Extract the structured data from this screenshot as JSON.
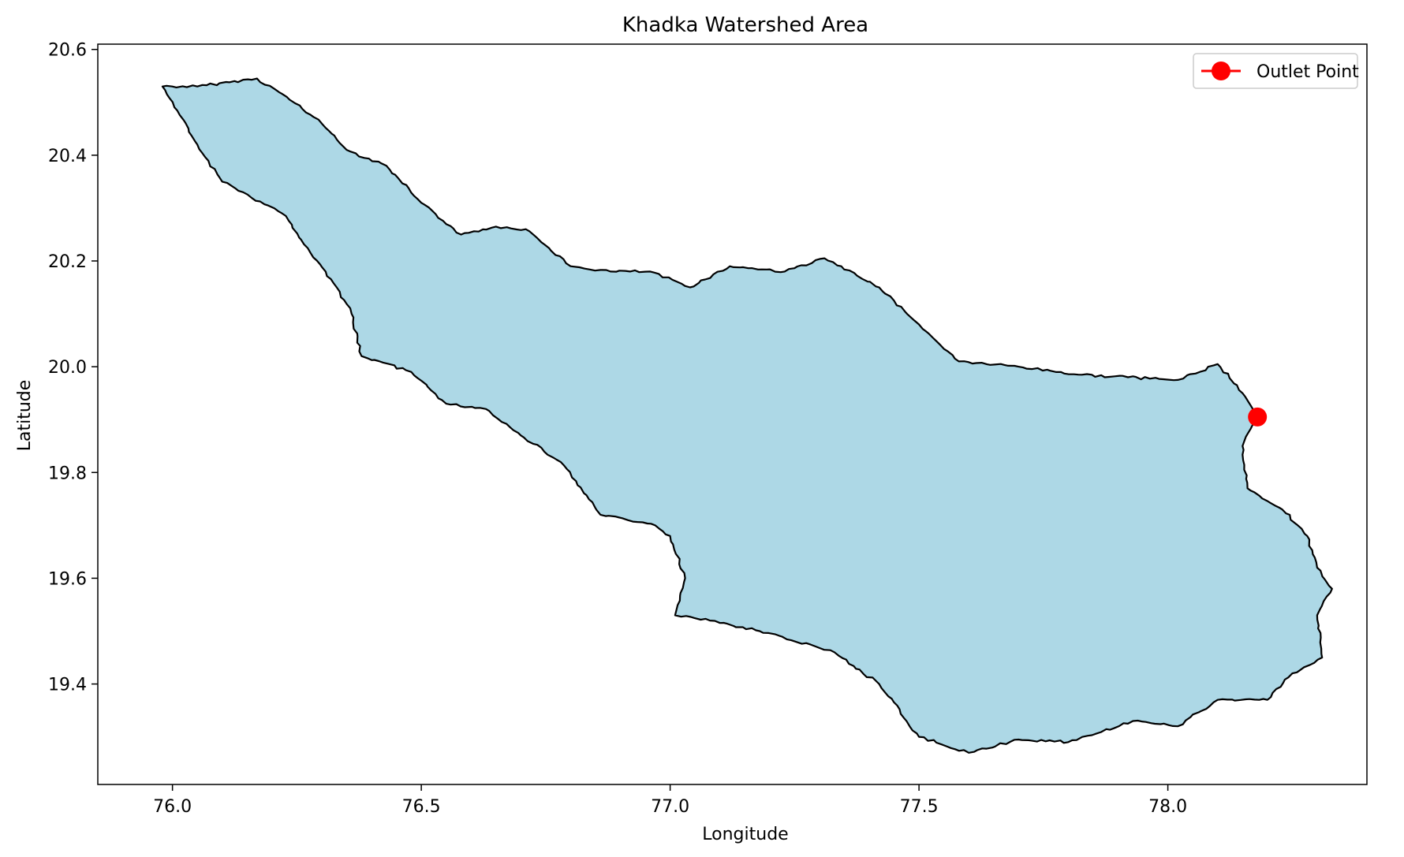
{
  "chart_data": {
    "type": "area",
    "title": "Khadka Watershed Area",
    "xlabel": "Longitude",
    "ylabel": "Latitude",
    "xlim": [
      75.85,
      78.4
    ],
    "ylim": [
      19.21,
      20.61
    ],
    "x_ticks": [
      "76.0",
      "76.5",
      "77.0",
      "77.5",
      "78.0"
    ],
    "y_ticks": [
      "19.4",
      "19.6",
      "19.8",
      "20.0",
      "20.2",
      "20.4",
      "20.6"
    ],
    "grid": false,
    "legend_position": "top-right",
    "legend": [
      {
        "label": "Outlet Point",
        "marker": "circle",
        "color": "#ff0000"
      }
    ],
    "outlet_point": {
      "x": 78.18,
      "y": 19.905
    },
    "watershed_fill_color": "#add8e6",
    "watershed_edge_color": "#000000",
    "watershed_boundary": [
      [
        75.98,
        20.53
      ],
      [
        76.05,
        20.53
      ],
      [
        76.17,
        20.545
      ],
      [
        76.23,
        20.51
      ],
      [
        76.3,
        20.46
      ],
      [
        76.35,
        20.41
      ],
      [
        76.43,
        20.38
      ],
      [
        76.5,
        20.31
      ],
      [
        76.58,
        20.25
      ],
      [
        76.65,
        20.265
      ],
      [
        76.71,
        20.26
      ],
      [
        76.8,
        20.19
      ],
      [
        76.88,
        20.18
      ],
      [
        76.96,
        20.18
      ],
      [
        77.04,
        20.15
      ],
      [
        77.12,
        20.19
      ],
      [
        77.23,
        20.18
      ],
      [
        77.31,
        20.205
      ],
      [
        77.42,
        20.15
      ],
      [
        77.5,
        20.08
      ],
      [
        77.58,
        20.01
      ],
      [
        77.7,
        20.0
      ],
      [
        77.82,
        19.985
      ],
      [
        77.92,
        19.98
      ],
      [
        78.02,
        19.975
      ],
      [
        78.1,
        20.005
      ],
      [
        78.15,
        19.95
      ],
      [
        78.18,
        19.905
      ],
      [
        78.15,
        19.85
      ],
      [
        78.16,
        19.77
      ],
      [
        78.23,
        19.73
      ],
      [
        78.28,
        19.68
      ],
      [
        78.3,
        19.62
      ],
      [
        78.33,
        19.58
      ],
      [
        78.3,
        19.53
      ],
      [
        78.31,
        19.45
      ],
      [
        78.25,
        19.42
      ],
      [
        78.2,
        19.37
      ],
      [
        78.1,
        19.37
      ],
      [
        78.02,
        19.32
      ],
      [
        77.93,
        19.33
      ],
      [
        77.8,
        19.29
      ],
      [
        77.7,
        19.295
      ],
      [
        77.6,
        19.27
      ],
      [
        77.5,
        19.3
      ],
      [
        77.42,
        19.4
      ],
      [
        77.33,
        19.46
      ],
      [
        77.18,
        19.5
      ],
      [
        77.08,
        19.52
      ],
      [
        77.01,
        19.53
      ],
      [
        77.03,
        19.6
      ],
      [
        77.0,
        19.68
      ],
      [
        76.97,
        19.7
      ],
      [
        76.86,
        19.72
      ],
      [
        76.78,
        19.82
      ],
      [
        76.7,
        19.87
      ],
      [
        76.63,
        19.92
      ],
      [
        76.55,
        19.93
      ],
      [
        76.48,
        19.99
      ],
      [
        76.38,
        20.02
      ],
      [
        76.36,
        20.1
      ],
      [
        76.33,
        20.15
      ],
      [
        76.22,
        20.29
      ],
      [
        76.1,
        20.35
      ],
      [
        76.05,
        20.42
      ]
    ]
  }
}
